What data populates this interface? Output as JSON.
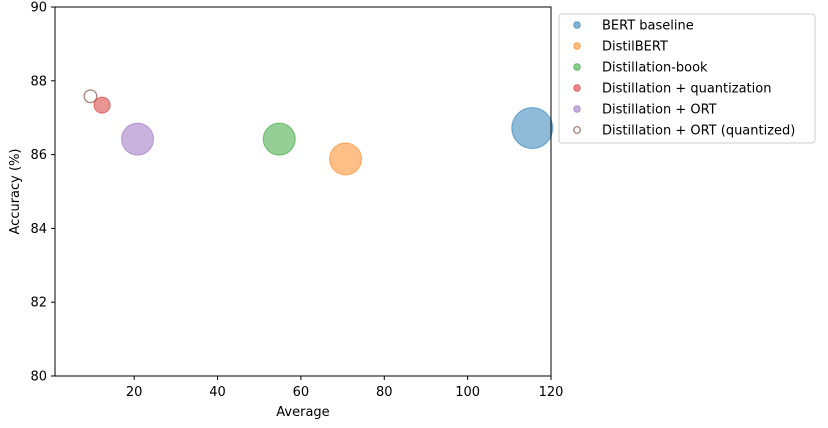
{
  "chart_data": {
    "type": "scatter",
    "xlabel": "Average",
    "ylabel": "Accuracy (%)",
    "xlim": [
      1,
      120
    ],
    "ylim": [
      80,
      90
    ],
    "xticks": [
      20,
      40,
      60,
      80,
      100,
      120
    ],
    "yticks": [
      80,
      82,
      84,
      86,
      88,
      90
    ],
    "grid": false,
    "legend_position": "outside-right",
    "series": [
      {
        "name": "BERT baseline",
        "x": 115.5,
        "y": 86.72,
        "size": 418,
        "color": "#1f77b4",
        "hollow": false
      },
      {
        "name": "DistilBERT",
        "x": 70.7,
        "y": 85.88,
        "size": 255,
        "color": "#ff7f0e",
        "hollow": false
      },
      {
        "name": "Distillation-book",
        "x": 54.8,
        "y": 86.42,
        "size": 255,
        "color": "#2ca02c",
        "hollow": false
      },
      {
        "name": "Distillation + quantization",
        "x": 12.3,
        "y": 87.34,
        "size": 64,
        "color": "#d62728",
        "hollow": false
      },
      {
        "name": "Distillation + ORT",
        "x": 20.8,
        "y": 86.42,
        "size": 255,
        "color": "#9467bd",
        "hollow": false
      },
      {
        "name": "Distillation + ORT (quantized)",
        "x": 9.5,
        "y": 87.58,
        "size": 40,
        "color": "#8c564b",
        "hollow": true
      }
    ]
  }
}
